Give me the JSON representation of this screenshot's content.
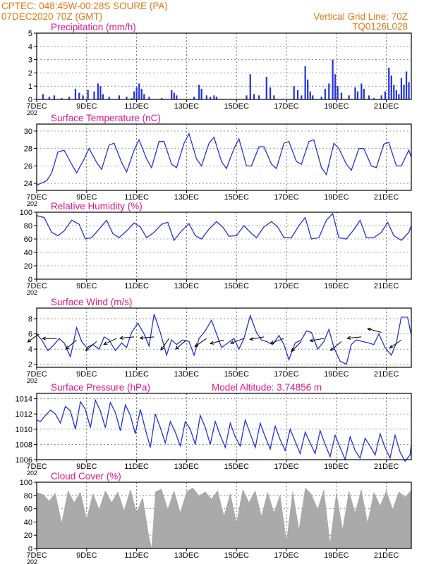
{
  "header": {
    "line1": "CPTEC:   048:45W-00:28S   SOURE (PA)",
    "line2": "07DEC2020 70Z (GMT)",
    "grid_note": "Vertical Grid Line: 70Z",
    "code": "TQ0126L028"
  },
  "colors": {
    "header": "#e07a18",
    "title": "#e0158a",
    "line": "#2233dd",
    "cloud": "#aaaaaa",
    "axis": "#000000",
    "grid": "#555555"
  },
  "x_axis": {
    "day_start": 7,
    "day_end": 22,
    "ticks": [
      "7DEC",
      "9DEC",
      "11DEC",
      "13DEC",
      "15DEC",
      "17DEC",
      "19DEC",
      "21DEC"
    ],
    "tick_days": [
      7,
      9,
      11,
      13,
      15,
      17,
      19,
      21
    ],
    "grid_days": [
      9,
      11,
      13,
      15,
      17,
      19,
      21
    ],
    "year_stub": "202"
  },
  "chart_data": [
    {
      "type": "bar",
      "title": "Precipitation (mm/h)",
      "ylim": [
        0,
        5
      ],
      "yticks": [
        0,
        1,
        2,
        3,
        4,
        5
      ],
      "bars": [
        {
          "x": 7.25,
          "v": 0.4
        },
        {
          "x": 7.5,
          "v": 0.2
        },
        {
          "x": 7.7,
          "v": 0.3
        },
        {
          "x": 8.0,
          "v": 0.1
        },
        {
          "x": 8.3,
          "v": 0.2
        },
        {
          "x": 8.55,
          "v": 0.8
        },
        {
          "x": 8.7,
          "v": 0.5
        },
        {
          "x": 8.85,
          "v": 0.3
        },
        {
          "x": 9.05,
          "v": 0.7
        },
        {
          "x": 9.3,
          "v": 0.6
        },
        {
          "x": 9.45,
          "v": 1.2
        },
        {
          "x": 9.55,
          "v": 1.0
        },
        {
          "x": 9.65,
          "v": 0.4
        },
        {
          "x": 9.9,
          "v": 0.2
        },
        {
          "x": 10.3,
          "v": 0.3
        },
        {
          "x": 10.6,
          "v": 0.2
        },
        {
          "x": 10.8,
          "v": 0.1
        },
        {
          "x": 10.9,
          "v": 0.6
        },
        {
          "x": 11.0,
          "v": 0.9
        },
        {
          "x": 11.1,
          "v": 1.2
        },
        {
          "x": 11.2,
          "v": 0.8
        },
        {
          "x": 11.3,
          "v": 0.4
        },
        {
          "x": 11.5,
          "v": 0.2
        },
        {
          "x": 12.0,
          "v": 0.1
        },
        {
          "x": 12.4,
          "v": 0.7
        },
        {
          "x": 12.5,
          "v": 0.5
        },
        {
          "x": 12.6,
          "v": 0.3
        },
        {
          "x": 13.3,
          "v": 0.2
        },
        {
          "x": 13.5,
          "v": 1.1
        },
        {
          "x": 13.6,
          "v": 0.8
        },
        {
          "x": 13.8,
          "v": 0.3
        },
        {
          "x": 13.95,
          "v": 0.2
        },
        {
          "x": 14.1,
          "v": 0.3
        },
        {
          "x": 14.2,
          "v": 0.2
        },
        {
          "x": 15.4,
          "v": 0.3
        },
        {
          "x": 15.55,
          "v": 1.9
        },
        {
          "x": 15.7,
          "v": 0.4
        },
        {
          "x": 15.9,
          "v": 0.3
        },
        {
          "x": 16.2,
          "v": 1.7
        },
        {
          "x": 16.35,
          "v": 0.9
        },
        {
          "x": 16.5,
          "v": 0.3
        },
        {
          "x": 17.3,
          "v": 1.0
        },
        {
          "x": 17.45,
          "v": 0.7
        },
        {
          "x": 17.6,
          "v": 0.3
        },
        {
          "x": 17.75,
          "v": 2.5
        },
        {
          "x": 17.85,
          "v": 1.5
        },
        {
          "x": 17.95,
          "v": 0.6
        },
        {
          "x": 18.05,
          "v": 0.3
        },
        {
          "x": 18.4,
          "v": 0.2
        },
        {
          "x": 18.55,
          "v": 0.8
        },
        {
          "x": 18.7,
          "v": 1.2
        },
        {
          "x": 18.85,
          "v": 3.0
        },
        {
          "x": 18.95,
          "v": 1.9
        },
        {
          "x": 19.05,
          "v": 1.0
        },
        {
          "x": 19.2,
          "v": 0.5
        },
        {
          "x": 19.5,
          "v": 0.3
        },
        {
          "x": 19.75,
          "v": 0.9
        },
        {
          "x": 19.85,
          "v": 0.6
        },
        {
          "x": 20.0,
          "v": 1.2
        },
        {
          "x": 20.1,
          "v": 0.8
        },
        {
          "x": 20.3,
          "v": 0.3
        },
        {
          "x": 20.5,
          "v": 0.1
        },
        {
          "x": 20.8,
          "v": 0.3
        },
        {
          "x": 20.95,
          "v": 0.6
        },
        {
          "x": 21.1,
          "v": 2.4
        },
        {
          "x": 21.2,
          "v": 1.8
        },
        {
          "x": 21.3,
          "v": 1.1
        },
        {
          "x": 21.4,
          "v": 0.7
        },
        {
          "x": 21.5,
          "v": 0.4
        },
        {
          "x": 21.6,
          "v": 1.6
        },
        {
          "x": 21.7,
          "v": 1.1
        },
        {
          "x": 21.8,
          "v": 2.1
        },
        {
          "x": 21.9,
          "v": 1.3
        }
      ]
    },
    {
      "type": "line",
      "title": "Surface Temperature (nC)",
      "ylim": [
        23.2,
        30.8
      ],
      "yticks": [
        24,
        26,
        28,
        30
      ],
      "x": [
        7,
        7.4,
        7.6,
        7.85,
        8.1,
        8.4,
        8.6,
        8.9,
        9.1,
        9.4,
        9.6,
        9.9,
        10.1,
        10.4,
        10.6,
        10.9,
        11.1,
        11.4,
        11.6,
        11.9,
        12.1,
        12.4,
        12.6,
        12.9,
        13.1,
        13.4,
        13.6,
        13.9,
        14.1,
        14.4,
        14.6,
        14.9,
        15.1,
        15.4,
        15.6,
        15.9,
        16.1,
        16.4,
        16.6,
        16.9,
        17.1,
        17.4,
        17.6,
        17.9,
        18.1,
        18.4,
        18.6,
        18.9,
        19.1,
        19.4,
        19.6,
        19.9,
        20.1,
        20.4,
        20.6,
        20.9,
        21.1,
        21.4,
        21.6,
        21.9,
        22
      ],
      "y": [
        23.8,
        24.3,
        25.2,
        27.6,
        27.8,
        26.2,
        25.2,
        26.8,
        28.0,
        26.4,
        25.6,
        28.4,
        28.6,
        26.4,
        25.3,
        27.8,
        29.0,
        26.8,
        25.8,
        28.8,
        28.8,
        26.2,
        25.8,
        28.6,
        29.7,
        26.8,
        26.0,
        28.6,
        29.3,
        26.5,
        25.7,
        28.0,
        29.1,
        26.0,
        26.0,
        28.2,
        28.2,
        26.2,
        25.7,
        28.6,
        28.8,
        26.5,
        26.2,
        28.8,
        29.0,
        25.8,
        25.0,
        28.6,
        28.0,
        26.2,
        25.5,
        28.0,
        28.0,
        26.0,
        25.8,
        28.5,
        28.7,
        26.0,
        26.0,
        27.8,
        27.0
      ]
    },
    {
      "type": "line",
      "title": "Relative Humidity (%)",
      "ylim": [
        0,
        100
      ],
      "yticks": [
        0,
        20,
        40,
        60,
        80,
        100
      ],
      "x": [
        7,
        7.3,
        7.6,
        7.85,
        8.1,
        8.4,
        8.7,
        8.95,
        9.2,
        9.5,
        9.8,
        10.05,
        10.3,
        10.6,
        10.9,
        11.15,
        11.4,
        11.7,
        12.0,
        12.25,
        12.5,
        12.8,
        13.1,
        13.35,
        13.6,
        13.9,
        14.2,
        14.45,
        14.7,
        15.0,
        15.3,
        15.55,
        15.8,
        16.1,
        16.4,
        16.65,
        16.9,
        17.2,
        17.5,
        17.75,
        18.0,
        18.3,
        18.6,
        18.85,
        19.1,
        19.4,
        19.7,
        19.95,
        20.2,
        20.5,
        20.8,
        21.05,
        21.3,
        21.6,
        21.9,
        22
      ],
      "y": [
        95,
        92,
        70,
        65,
        72,
        88,
        82,
        60,
        62,
        75,
        88,
        68,
        62,
        72,
        84,
        78,
        62,
        70,
        82,
        85,
        58,
        72,
        83,
        65,
        60,
        75,
        86,
        78,
        64,
        65,
        80,
        70,
        62,
        78,
        86,
        78,
        62,
        62,
        80,
        92,
        60,
        62,
        88,
        98,
        62,
        60,
        74,
        88,
        62,
        62,
        70,
        85,
        65,
        58,
        70,
        80
      ]
    },
    {
      "type": "line",
      "title": "Surface Wind (m/s)",
      "ylim": [
        1.6,
        9.4
      ],
      "yticks": [
        2,
        4,
        6,
        8
      ],
      "x": [
        7,
        7.2,
        7.45,
        7.7,
        7.9,
        8.1,
        8.35,
        8.6,
        8.8,
        9.0,
        9.25,
        9.5,
        9.7,
        9.9,
        10.15,
        10.4,
        10.6,
        10.8,
        11.05,
        11.3,
        11.5,
        11.7,
        11.95,
        12.2,
        12.4,
        12.6,
        12.85,
        13.1,
        13.3,
        13.5,
        13.75,
        14.0,
        14.2,
        14.4,
        14.65,
        14.9,
        15.1,
        15.3,
        15.55,
        15.8,
        16.0,
        16.2,
        16.45,
        16.7,
        16.9,
        17.1,
        17.35,
        17.6,
        17.8,
        18.0,
        18.25,
        18.5,
        18.7,
        18.9,
        19.15,
        19.4,
        19.6,
        19.8,
        20.05,
        20.3,
        20.5,
        20.7,
        20.95,
        21.2,
        21.4,
        21.6,
        21.85,
        22
      ],
      "y": [
        6.0,
        5.2,
        3.8,
        4.6,
        5.4,
        4.8,
        3.0,
        6.8,
        5.0,
        4.2,
        4.6,
        4.0,
        5.6,
        5.2,
        3.8,
        4.8,
        4.2,
        6.2,
        7.4,
        6.0,
        4.4,
        8.6,
        6.2,
        3.2,
        5.2,
        4.6,
        5.2,
        5.0,
        3.2,
        5.4,
        6.4,
        7.8,
        6.0,
        4.2,
        4.8,
        5.4,
        4.0,
        5.4,
        8.4,
        6.2,
        5.2,
        5.0,
        4.6,
        5.8,
        4.6,
        2.6,
        4.8,
        5.2,
        6.4,
        6.2,
        4.0,
        5.0,
        6.6,
        4.2,
        2.4,
        2.0,
        4.6,
        5.2,
        5.0,
        4.8,
        4.6,
        6.0,
        4.2,
        3.2,
        4.8,
        8.2,
        8.2,
        5.8
      ],
      "arrows": [
        {
          "x": 7.1,
          "y": 6.0,
          "angle": 215
        },
        {
          "x": 7.8,
          "y": 5.4,
          "angle": 180
        },
        {
          "x": 8.6,
          "y": 5.2,
          "angle": 220
        },
        {
          "x": 9.4,
          "y": 5.0,
          "angle": 220
        },
        {
          "x": 10.2,
          "y": 5.4,
          "angle": 205
        },
        {
          "x": 10.9,
          "y": 5.6,
          "angle": 185
        },
        {
          "x": 11.7,
          "y": 5.6,
          "angle": 185
        },
        {
          "x": 12.3,
          "y": 5.4,
          "angle": 235
        },
        {
          "x": 13.0,
          "y": 5.2,
          "angle": 220
        },
        {
          "x": 13.8,
          "y": 5.4,
          "angle": 215
        },
        {
          "x": 14.5,
          "y": 5.2,
          "angle": 195
        },
        {
          "x": 15.3,
          "y": 5.4,
          "angle": 200
        },
        {
          "x": 16.1,
          "y": 5.6,
          "angle": 190
        },
        {
          "x": 16.9,
          "y": 5.4,
          "angle": 200
        },
        {
          "x": 17.6,
          "y": 5.0,
          "angle": 225
        },
        {
          "x": 18.5,
          "y": 5.4,
          "angle": 190
        },
        {
          "x": 19.2,
          "y": 5.0,
          "angle": 220
        },
        {
          "x": 20.0,
          "y": 5.6,
          "angle": 185
        },
        {
          "x": 20.8,
          "y": 6.2,
          "angle": 165
        },
        {
          "x": 21.6,
          "y": 5.2,
          "angle": 215
        }
      ]
    },
    {
      "type": "line",
      "title": "Surface Pressure (hPa)",
      "subtitle": "Model Altitude: 3.74856 m",
      "ylim": [
        1006,
        1014.7
      ],
      "yticks": [
        1006,
        1008,
        1010,
        1012,
        1014
      ],
      "x": [
        7,
        7.15,
        7.35,
        7.55,
        7.75,
        7.95,
        8.15,
        8.35,
        8.55,
        8.75,
        8.95,
        9.15,
        9.35,
        9.55,
        9.75,
        9.95,
        10.15,
        10.35,
        10.55,
        10.75,
        10.95,
        11.15,
        11.35,
        11.55,
        11.75,
        11.95,
        12.15,
        12.35,
        12.55,
        12.75,
        12.95,
        13.15,
        13.35,
        13.55,
        13.75,
        13.95,
        14.15,
        14.35,
        14.55,
        14.75,
        14.95,
        15.15,
        15.35,
        15.55,
        15.75,
        15.95,
        16.15,
        16.35,
        16.55,
        16.75,
        16.95,
        17.15,
        17.35,
        17.55,
        17.75,
        17.95,
        18.15,
        18.35,
        18.55,
        18.75,
        18.95,
        19.15,
        19.35,
        19.55,
        19.75,
        19.95,
        20.15,
        20.35,
        20.55,
        20.75,
        20.95,
        21.15,
        21.35,
        21.55,
        21.75,
        21.95,
        22
      ],
      "y": [
        1011.2,
        1011.0,
        1011.8,
        1012.5,
        1012.0,
        1010.8,
        1013.0,
        1012.4,
        1010.0,
        1013.6,
        1012.6,
        1010.2,
        1013.8,
        1012.4,
        1010.2,
        1013.5,
        1012.2,
        1009.8,
        1013.2,
        1011.8,
        1009.4,
        1012.6,
        1010.0,
        1007.6,
        1012.0,
        1010.2,
        1008.2,
        1011.0,
        1009.6,
        1007.8,
        1011.0,
        1010.0,
        1008.0,
        1011.8,
        1010.2,
        1008.0,
        1011.0,
        1009.2,
        1007.6,
        1010.8,
        1009.0,
        1007.8,
        1011.2,
        1009.4,
        1007.6,
        1010.8,
        1009.0,
        1007.4,
        1010.4,
        1008.6,
        1007.2,
        1010.0,
        1008.4,
        1006.8,
        1009.6,
        1008.2,
        1006.8,
        1009.8,
        1008.0,
        1006.4,
        1009.2,
        1007.6,
        1006.0,
        1009.0,
        1007.2,
        1006.2,
        1008.8,
        1007.8,
        1006.6,
        1009.4,
        1007.6,
        1006.2,
        1009.2,
        1007.0,
        1005.8,
        1006.6,
        1008.0
      ]
    },
    {
      "type": "area",
      "title": "Cloud Cover (%)",
      "ylim": [
        0,
        100
      ],
      "yticks": [
        0,
        20,
        40,
        60,
        80,
        100
      ],
      "x": [
        7,
        7.25,
        7.5,
        7.75,
        8.0,
        8.25,
        8.5,
        8.75,
        9.0,
        9.25,
        9.5,
        9.75,
        10.0,
        10.25,
        10.5,
        10.75,
        11.0,
        11.25,
        11.5,
        11.6,
        11.75,
        12.0,
        12.25,
        12.5,
        12.75,
        13.0,
        13.25,
        13.5,
        13.75,
        14.0,
        14.25,
        14.5,
        14.75,
        15.0,
        15.25,
        15.5,
        15.75,
        16.0,
        16.25,
        16.5,
        16.75,
        17.0,
        17.25,
        17.5,
        17.75,
        18.0,
        18.25,
        18.5,
        18.75,
        19.0,
        19.25,
        19.5,
        19.75,
        20.0,
        20.25,
        20.5,
        20.75,
        21.0,
        21.25,
        21.5,
        21.75,
        22
      ],
      "y": [
        85,
        82,
        72,
        84,
        40,
        88,
        70,
        86,
        45,
        84,
        60,
        88,
        70,
        86,
        58,
        90,
        55,
        78,
        18,
        2,
        86,
        90,
        60,
        88,
        55,
        86,
        92,
        80,
        86,
        75,
        88,
        50,
        84,
        40,
        90,
        70,
        88,
        50,
        86,
        55,
        82,
        12,
        88,
        30,
        92,
        82,
        60,
        90,
        10,
        86,
        30,
        88,
        55,
        90,
        40,
        86,
        65,
        88,
        60,
        86,
        78,
        88
      ]
    }
  ]
}
